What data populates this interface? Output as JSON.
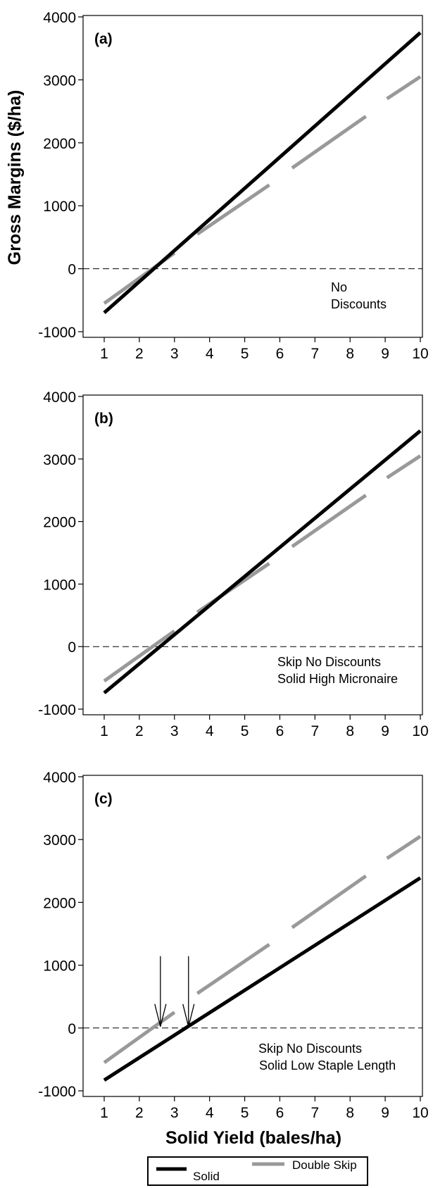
{
  "figure": {
    "ylabel": "Gross Margins ($/ha)",
    "xlabel": "Solid Yield (bales/ha)"
  },
  "legend": {
    "items": [
      {
        "label": "Solid",
        "color": "#000000"
      },
      {
        "label": "Double Skip",
        "color": "#999999"
      }
    ]
  },
  "chart_data": [
    {
      "type": "line",
      "panel_label": "(a)",
      "annotation": [
        "No",
        "Discounts"
      ],
      "x_ticks": [
        "1",
        "2",
        "3",
        "4",
        "5",
        "6",
        "7",
        "8",
        "9",
        "10"
      ],
      "y_ticks": [
        "4000",
        "3000",
        "2000",
        "1000",
        "0",
        "-1000"
      ],
      "ylim": [
        -1000,
        4000
      ],
      "zero_line": "dashed",
      "series": [
        {
          "name": "Solid",
          "color": "#000000",
          "segments": [
            [
              [
                1,
                -700
              ],
              [
                10,
                3750
              ]
            ]
          ]
        },
        {
          "name": "Double Skip",
          "color": "#999999",
          "segments": [
            [
              [
                1,
                -550
              ],
              [
                3,
                250
              ]
            ],
            [
              [
                3.65,
                550
              ],
              [
                5.7,
                1330
              ]
            ],
            [
              [
                6.35,
                1600
              ],
              [
                8.45,
                2420
              ]
            ],
            [
              [
                9.05,
                2700
              ],
              [
                10,
                3050
              ]
            ]
          ]
        }
      ],
      "arrows_at_x": []
    },
    {
      "type": "line",
      "panel_label": "(b)",
      "annotation": [
        "Skip No Discounts",
        "Solid High Micronaire"
      ],
      "x_ticks": [
        "1",
        "2",
        "3",
        "4",
        "5",
        "6",
        "7",
        "8",
        "9",
        "10"
      ],
      "y_ticks": [
        "4000",
        "3000",
        "2000",
        "1000",
        "0",
        "-1000"
      ],
      "ylim": [
        -1000,
        4000
      ],
      "zero_line": "dashed",
      "series": [
        {
          "name": "Solid",
          "color": "#000000",
          "segments": [
            [
              [
                1,
                -740
              ],
              [
                10,
                3450
              ]
            ]
          ]
        },
        {
          "name": "Double Skip",
          "color": "#999999",
          "segments": [
            [
              [
                1,
                -550
              ],
              [
                3,
                250
              ]
            ],
            [
              [
                3.65,
                550
              ],
              [
                5.7,
                1330
              ]
            ],
            [
              [
                6.35,
                1600
              ],
              [
                8.45,
                2420
              ]
            ],
            [
              [
                9.05,
                2700
              ],
              [
                10,
                3050
              ]
            ]
          ]
        }
      ],
      "arrows_at_x": []
    },
    {
      "type": "line",
      "panel_label": "(c)",
      "annotation": [
        "Skip No Discounts",
        "Solid Low Staple Length"
      ],
      "x_ticks": [
        "1",
        "2",
        "3",
        "4",
        "5",
        "6",
        "7",
        "8",
        "9",
        "10"
      ],
      "y_ticks": [
        "4000",
        "3000",
        "2000",
        "1000",
        "0",
        "-1000"
      ],
      "ylim": [
        -1000,
        4000
      ],
      "zero_line": "dashed",
      "series": [
        {
          "name": "Solid",
          "color": "#000000",
          "segments": [
            [
              [
                1,
                -830
              ],
              [
                10,
                2390
              ]
            ]
          ]
        },
        {
          "name": "Double Skip",
          "color": "#999999",
          "segments": [
            [
              [
                1,
                -550
              ],
              [
                3,
                250
              ]
            ],
            [
              [
                3.65,
                550
              ],
              [
                5.7,
                1330
              ]
            ],
            [
              [
                6.35,
                1600
              ],
              [
                8.45,
                2420
              ]
            ],
            [
              [
                9.05,
                2700
              ],
              [
                10,
                3050
              ]
            ]
          ]
        }
      ],
      "arrows_at_x": [
        2.6,
        3.4
      ]
    }
  ]
}
